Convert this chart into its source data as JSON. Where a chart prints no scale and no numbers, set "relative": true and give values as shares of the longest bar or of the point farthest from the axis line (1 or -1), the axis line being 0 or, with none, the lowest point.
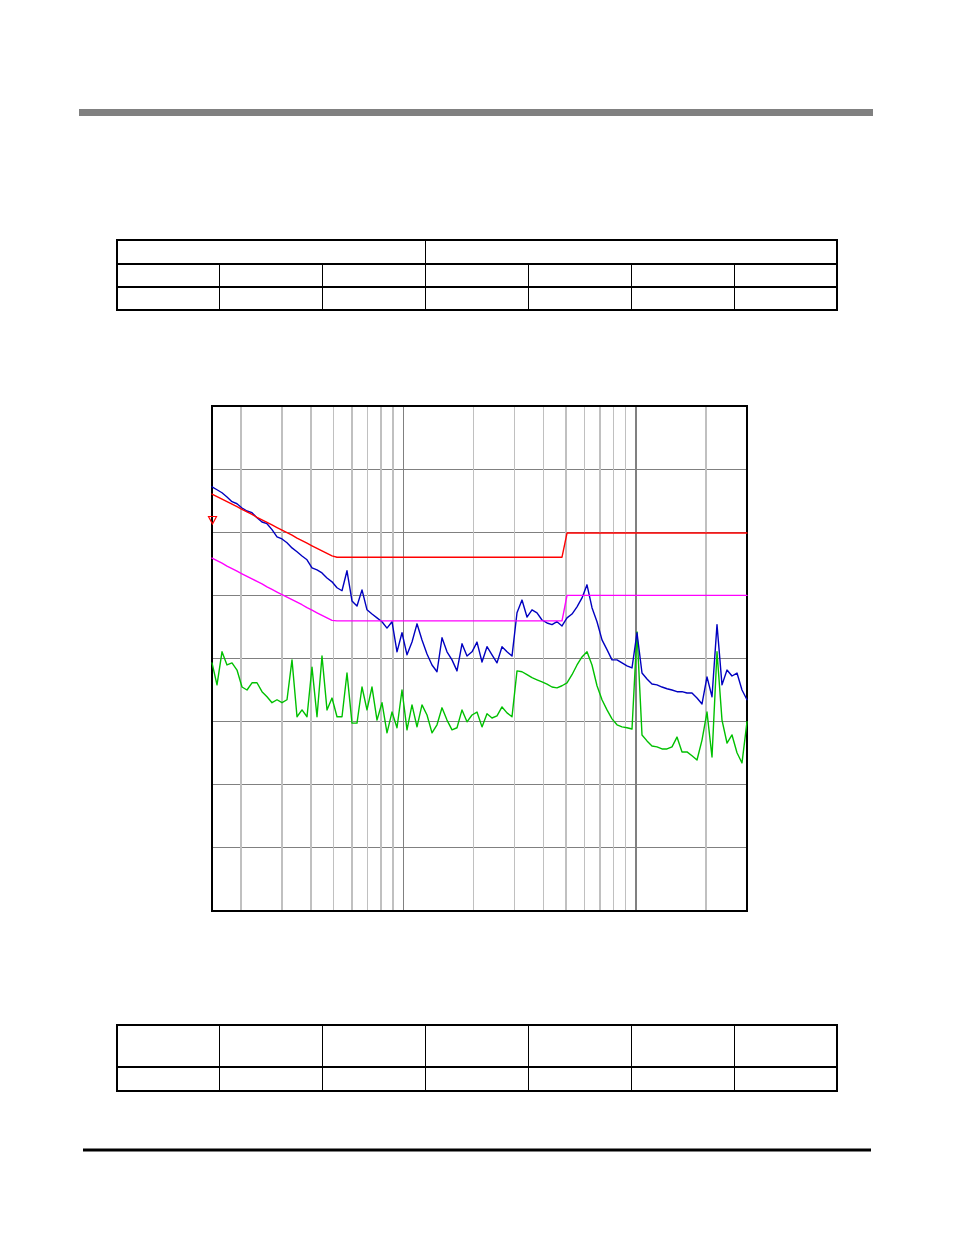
{
  "chart_data": {
    "type": "line",
    "relative": true,
    "grid": true,
    "categories": [
      null,
      null,
      null,
      null,
      null,
      null,
      null,
      null,
      null,
      null,
      null,
      null,
      null,
      null,
      null,
      null,
      null,
      null,
      null,
      null,
      null,
      null,
      null,
      null,
      null,
      null,
      null,
      null,
      null,
      null,
      null,
      null,
      null,
      null,
      null,
      null,
      null,
      null,
      null,
      null,
      null,
      null,
      null,
      null,
      null,
      null,
      null,
      null,
      null,
      null,
      null,
      null,
      null,
      null,
      null,
      null,
      null,
      null,
      null,
      null,
      null,
      null,
      null,
      null,
      null,
      null,
      null,
      null,
      null,
      null,
      null,
      null,
      null,
      null,
      null,
      null,
      null,
      null,
      null,
      null,
      null,
      null,
      null,
      null,
      null,
      null,
      null,
      null,
      null,
      null,
      null,
      null,
      null,
      null,
      null,
      null,
      null,
      null,
      null,
      null,
      null,
      null,
      null,
      null,
      null,
      null,
      null,
      null
    ],
    "series": [
      {
        "color": "#00c000",
        "values": [
          0.585,
          0.533,
          0.611,
          0.58,
          0.585,
          0.568,
          0.528,
          0.521,
          0.538,
          0.538,
          0.517,
          0.505,
          0.491,
          0.498,
          0.491,
          0.498,
          0.592,
          0.458,
          0.474,
          0.458,
          0.575,
          0.458,
          0.601,
          0.474,
          0.502,
          0.458,
          0.458,
          0.561,
          0.443,
          0.443,
          0.528,
          0.474,
          0.528,
          0.45,
          0.491,
          0.42,
          0.469,
          0.432,
          0.521,
          0.427,
          0.486,
          0.434,
          0.486,
          0.462,
          0.42,
          0.439,
          0.479,
          0.45,
          0.427,
          0.432,
          0.474,
          0.446,
          0.462,
          0.469,
          0.434,
          0.465,
          0.455,
          0.46,
          0.481,
          0.467,
          0.458,
          0.566,
          0.564,
          0.557,
          0.55,
          0.545,
          0.54,
          0.535,
          0.528,
          0.526,
          0.531,
          0.538,
          0.557,
          0.58,
          0.599,
          0.611,
          0.58,
          0.531,
          0.498,
          0.474,
          0.453,
          0.439,
          0.434,
          0.432,
          0.429,
          0.658,
          0.415,
          0.401,
          0.389,
          0.387,
          0.382,
          0.382,
          0.387,
          0.41,
          0.375,
          0.375,
          0.366,
          0.356,
          0.403,
          0.469,
          0.363,
          0.611,
          0.45,
          0.396,
          0.415,
          0.373,
          0.349,
          0.446
        ]
      },
      {
        "color": "#0000c0",
        "values": [
          1.0,
          0.993,
          0.986,
          0.976,
          0.965,
          0.96,
          0.95,
          0.943,
          0.939,
          0.927,
          0.917,
          0.913,
          0.899,
          0.882,
          0.877,
          0.868,
          0.856,
          0.847,
          0.837,
          0.828,
          0.809,
          0.804,
          0.797,
          0.785,
          0.776,
          0.762,
          0.755,
          0.802,
          0.731,
          0.719,
          0.757,
          0.71,
          0.7,
          0.691,
          0.682,
          0.667,
          0.682,
          0.611,
          0.656,
          0.604,
          0.634,
          0.677,
          0.639,
          0.606,
          0.58,
          0.564,
          0.644,
          0.611,
          0.592,
          0.566,
          0.63,
          0.601,
          0.611,
          0.634,
          0.587,
          0.623,
          0.604,
          0.585,
          0.623,
          0.611,
          0.601,
          0.703,
          0.733,
          0.693,
          0.71,
          0.703,
          0.686,
          0.679,
          0.675,
          0.682,
          0.672,
          0.691,
          0.7,
          0.717,
          0.738,
          0.769,
          0.715,
          0.682,
          0.639,
          0.616,
          0.592,
          0.592,
          0.585,
          0.578,
          0.573,
          0.656,
          0.561,
          0.547,
          0.535,
          0.533,
          0.528,
          0.524,
          0.521,
          0.517,
          0.517,
          0.514,
          0.514,
          0.502,
          0.488,
          0.552,
          0.505,
          0.675,
          0.533,
          0.568,
          0.554,
          0.561,
          0.521,
          0.498
        ]
      },
      {
        "color": "#ff0000",
        "values": [
          0.983,
          0.977,
          0.971,
          0.965,
          0.959,
          0.953,
          0.947,
          0.941,
          0.935,
          0.928,
          0.922,
          0.916,
          0.91,
          0.904,
          0.898,
          0.892,
          0.886,
          0.879,
          0.873,
          0.867,
          0.861,
          0.855,
          0.849,
          0.843,
          0.837,
          0.834,
          0.834,
          0.834,
          0.834,
          0.834,
          0.834,
          0.834,
          0.834,
          0.834,
          0.834,
          0.834,
          0.834,
          0.834,
          0.834,
          0.834,
          0.834,
          0.834,
          0.834,
          0.834,
          0.834,
          0.834,
          0.834,
          0.834,
          0.834,
          0.834,
          0.834,
          0.834,
          0.834,
          0.834,
          0.834,
          0.834,
          0.834,
          0.834,
          0.834,
          0.834,
          0.834,
          0.834,
          0.834,
          0.834,
          0.834,
          0.834,
          0.834,
          0.834,
          0.834,
          0.834,
          0.834,
          0.891,
          0.891,
          0.891,
          0.891,
          0.891,
          0.891,
          0.891,
          0.891,
          0.891,
          0.891,
          0.891,
          0.891,
          0.891,
          0.891,
          0.891,
          0.891,
          0.891,
          0.891,
          0.891,
          0.891,
          0.891,
          0.891,
          0.891,
          0.891,
          0.891,
          0.891,
          0.891,
          0.891,
          0.891,
          0.891,
          0.891,
          0.891,
          0.891,
          0.891,
          0.891,
          0.891,
          0.891
        ]
      },
      {
        "color": "#ff00ff",
        "values": [
          0.832,
          0.826,
          0.82,
          0.813,
          0.807,
          0.801,
          0.795,
          0.789,
          0.783,
          0.777,
          0.771,
          0.764,
          0.758,
          0.752,
          0.746,
          0.74,
          0.734,
          0.728,
          0.722,
          0.715,
          0.709,
          0.703,
          0.697,
          0.691,
          0.685,
          0.684,
          0.684,
          0.684,
          0.684,
          0.684,
          0.684,
          0.684,
          0.684,
          0.684,
          0.684,
          0.684,
          0.684,
          0.684,
          0.684,
          0.684,
          0.684,
          0.684,
          0.684,
          0.684,
          0.684,
          0.684,
          0.684,
          0.684,
          0.684,
          0.684,
          0.684,
          0.684,
          0.684,
          0.684,
          0.684,
          0.684,
          0.684,
          0.684,
          0.684,
          0.684,
          0.684,
          0.684,
          0.684,
          0.684,
          0.684,
          0.684,
          0.684,
          0.684,
          0.684,
          0.684,
          0.684,
          0.744,
          0.744,
          0.744,
          0.744,
          0.744,
          0.744,
          0.744,
          0.744,
          0.744,
          0.744,
          0.744,
          0.744,
          0.744,
          0.744,
          0.744,
          0.744,
          0.744,
          0.744,
          0.744,
          0.744,
          0.744,
          0.744,
          0.744,
          0.744,
          0.744,
          0.744,
          0.744,
          0.744,
          0.744,
          0.744,
          0.744,
          0.744,
          0.744,
          0.744,
          0.744,
          0.744,
          0.744
        ]
      }
    ]
  }
}
